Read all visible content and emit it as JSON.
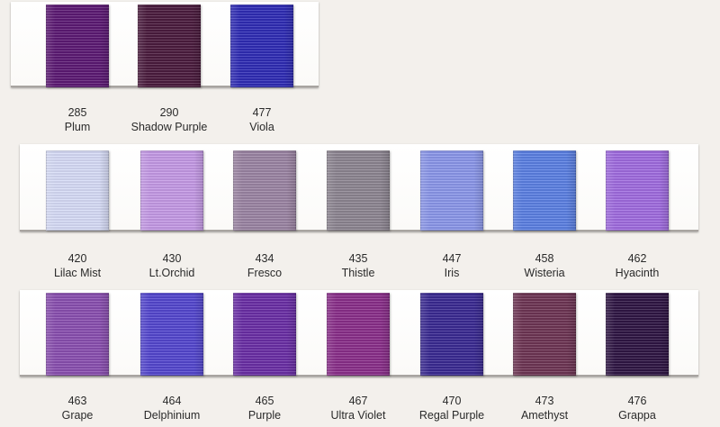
{
  "rows": [
    {
      "items": [
        {
          "code": "285",
          "name": "Plum",
          "color": "#5c1a74"
        },
        {
          "code": "290",
          "name": "Shadow Purple",
          "color": "#4b1c3e"
        },
        {
          "code": "477",
          "name": "Viola",
          "color": "#2f2cb5"
        }
      ]
    },
    {
      "items": [
        {
          "code": "420",
          "name": "Lilac Mist",
          "color": "#d7dcf7"
        },
        {
          "code": "430",
          "name": "Lt.Orchid",
          "color": "#c59ae6"
        },
        {
          "code": "434",
          "name": "Fresco",
          "color": "#9b84a3"
        },
        {
          "code": "435",
          "name": "Thistle",
          "color": "#8d8591"
        },
        {
          "code": "447",
          "name": "Iris",
          "color": "#8b97ea"
        },
        {
          "code": "458",
          "name": "Wisteria",
          "color": "#5b80e3"
        },
        {
          "code": "462",
          "name": "Hyacinth",
          "color": "#a06ce0"
        }
      ]
    },
    {
      "items": [
        {
          "code": "463",
          "name": "Grape",
          "color": "#8a4fb0"
        },
        {
          "code": "464",
          "name": "Delphinium",
          "color": "#5447cf"
        },
        {
          "code": "465",
          "name": "Purple",
          "color": "#6a2ea6"
        },
        {
          "code": "467",
          "name": "Ultra Violet",
          "color": "#8a2e8a"
        },
        {
          "code": "470",
          "name": "Regal Purple",
          "color": "#3a2a92"
        },
        {
          "code": "473",
          "name": "Amethyst",
          "color": "#6e3554"
        },
        {
          "code": "476",
          "name": "Grappa",
          "color": "#2f1544"
        }
      ]
    }
  ]
}
